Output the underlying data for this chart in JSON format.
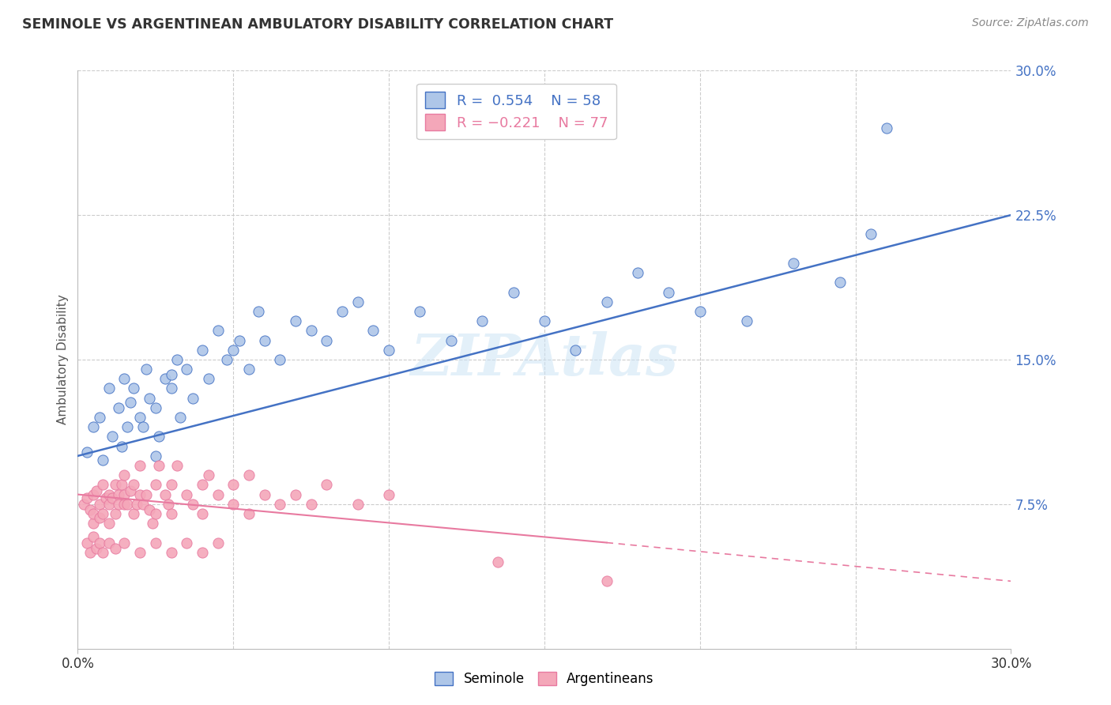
{
  "title": "SEMINOLE VS ARGENTINEAN AMBULATORY DISABILITY CORRELATION CHART",
  "source": "Source: ZipAtlas.com",
  "ylabel": "Ambulatory Disability",
  "xmin": 0.0,
  "xmax": 30.0,
  "ymin": 0.0,
  "ymax": 30.0,
  "yticks": [
    7.5,
    15.0,
    22.5,
    30.0
  ],
  "ytick_labels": [
    "7.5%",
    "15.0%",
    "22.5%",
    "30.0%"
  ],
  "seminole_color": "#aec6e8",
  "argentinean_color": "#f4a7b9",
  "seminole_line_color": "#4472c4",
  "argentinean_line_color": "#e87aa0",
  "seminole_R": 0.554,
  "seminole_N": 58,
  "argentinean_R": -0.221,
  "argentinean_N": 77,
  "background_color": "#ffffff",
  "grid_color": "#cccccc",
  "seminole_scatter": [
    [
      0.3,
      10.2
    ],
    [
      0.5,
      11.5
    ],
    [
      0.7,
      12.0
    ],
    [
      0.8,
      9.8
    ],
    [
      1.0,
      13.5
    ],
    [
      1.1,
      11.0
    ],
    [
      1.3,
      12.5
    ],
    [
      1.4,
      10.5
    ],
    [
      1.5,
      14.0
    ],
    [
      1.6,
      11.5
    ],
    [
      1.7,
      12.8
    ],
    [
      1.8,
      13.5
    ],
    [
      2.0,
      12.0
    ],
    [
      2.1,
      11.5
    ],
    [
      2.2,
      14.5
    ],
    [
      2.3,
      13.0
    ],
    [
      2.5,
      12.5
    ],
    [
      2.6,
      11.0
    ],
    [
      2.8,
      14.0
    ],
    [
      3.0,
      13.5
    ],
    [
      3.2,
      15.0
    ],
    [
      3.3,
      12.0
    ],
    [
      3.5,
      14.5
    ],
    [
      3.7,
      13.0
    ],
    [
      4.0,
      15.5
    ],
    [
      4.2,
      14.0
    ],
    [
      4.5,
      16.5
    ],
    [
      4.8,
      15.0
    ],
    [
      5.0,
      15.5
    ],
    [
      5.2,
      16.0
    ],
    [
      5.5,
      14.5
    ],
    [
      5.8,
      17.5
    ],
    [
      6.0,
      16.0
    ],
    [
      6.5,
      15.0
    ],
    [
      7.0,
      17.0
    ],
    [
      7.5,
      16.5
    ],
    [
      8.0,
      16.0
    ],
    [
      8.5,
      17.5
    ],
    [
      9.0,
      18.0
    ],
    [
      9.5,
      16.5
    ],
    [
      10.0,
      15.5
    ],
    [
      11.0,
      17.5
    ],
    [
      12.0,
      16.0
    ],
    [
      13.0,
      17.0
    ],
    [
      14.0,
      18.5
    ],
    [
      15.0,
      17.0
    ],
    [
      16.0,
      15.5
    ],
    [
      17.0,
      18.0
    ],
    [
      18.0,
      19.5
    ],
    [
      19.0,
      18.5
    ],
    [
      20.0,
      17.5
    ],
    [
      21.5,
      17.0
    ],
    [
      23.0,
      20.0
    ],
    [
      24.5,
      19.0
    ],
    [
      25.5,
      21.5
    ],
    [
      26.0,
      27.0
    ],
    [
      2.5,
      10.0
    ],
    [
      3.0,
      14.2
    ]
  ],
  "argentinean_scatter": [
    [
      0.2,
      7.5
    ],
    [
      0.3,
      7.8
    ],
    [
      0.4,
      7.2
    ],
    [
      0.5,
      8.0
    ],
    [
      0.5,
      6.5
    ],
    [
      0.5,
      7.0
    ],
    [
      0.6,
      8.2
    ],
    [
      0.7,
      7.5
    ],
    [
      0.7,
      6.8
    ],
    [
      0.8,
      8.5
    ],
    [
      0.8,
      7.0
    ],
    [
      0.9,
      7.8
    ],
    [
      1.0,
      8.0
    ],
    [
      1.0,
      7.5
    ],
    [
      1.0,
      6.5
    ],
    [
      1.1,
      7.8
    ],
    [
      1.2,
      8.5
    ],
    [
      1.2,
      7.0
    ],
    [
      1.3,
      8.0
    ],
    [
      1.3,
      7.5
    ],
    [
      1.4,
      8.5
    ],
    [
      1.5,
      7.5
    ],
    [
      1.5,
      8.0
    ],
    [
      1.5,
      9.0
    ],
    [
      1.6,
      7.5
    ],
    [
      1.7,
      8.2
    ],
    [
      1.8,
      7.0
    ],
    [
      1.8,
      8.5
    ],
    [
      1.9,
      7.5
    ],
    [
      2.0,
      8.0
    ],
    [
      2.0,
      9.5
    ],
    [
      2.1,
      7.5
    ],
    [
      2.2,
      8.0
    ],
    [
      2.3,
      7.2
    ],
    [
      2.4,
      6.5
    ],
    [
      2.5,
      8.5
    ],
    [
      2.5,
      7.0
    ],
    [
      2.6,
      9.5
    ],
    [
      2.8,
      8.0
    ],
    [
      2.9,
      7.5
    ],
    [
      3.0,
      8.5
    ],
    [
      3.0,
      7.0
    ],
    [
      3.2,
      9.5
    ],
    [
      3.5,
      8.0
    ],
    [
      3.7,
      7.5
    ],
    [
      4.0,
      8.5
    ],
    [
      4.0,
      7.0
    ],
    [
      4.2,
      9.0
    ],
    [
      4.5,
      8.0
    ],
    [
      5.0,
      8.5
    ],
    [
      5.0,
      7.5
    ],
    [
      5.5,
      7.0
    ],
    [
      5.5,
      9.0
    ],
    [
      6.0,
      8.0
    ],
    [
      6.5,
      7.5
    ],
    [
      7.0,
      8.0
    ],
    [
      7.5,
      7.5
    ],
    [
      8.0,
      8.5
    ],
    [
      9.0,
      7.5
    ],
    [
      10.0,
      8.0
    ],
    [
      0.3,
      5.5
    ],
    [
      0.4,
      5.0
    ],
    [
      0.5,
      5.8
    ],
    [
      0.6,
      5.2
    ],
    [
      0.7,
      5.5
    ],
    [
      0.8,
      5.0
    ],
    [
      1.0,
      5.5
    ],
    [
      1.2,
      5.2
    ],
    [
      1.5,
      5.5
    ],
    [
      2.0,
      5.0
    ],
    [
      2.5,
      5.5
    ],
    [
      3.0,
      5.0
    ],
    [
      3.5,
      5.5
    ],
    [
      4.0,
      5.0
    ],
    [
      4.5,
      5.5
    ],
    [
      13.5,
      4.5
    ],
    [
      17.0,
      3.5
    ]
  ],
  "seminole_line": [
    0.0,
    10.0,
    30.0,
    22.5
  ],
  "argentinean_solid_line": [
    0.0,
    8.0,
    17.0,
    5.5
  ],
  "argentinean_dashed_line": [
    17.0,
    5.5,
    30.0,
    3.5
  ]
}
